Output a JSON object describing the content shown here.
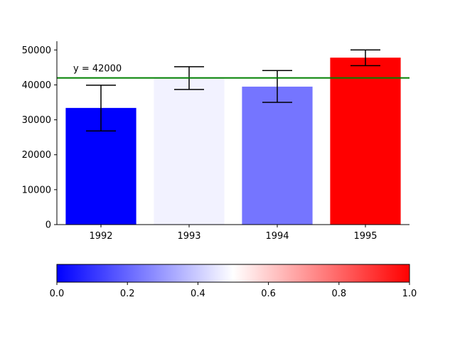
{
  "chart_data": {
    "type": "bar",
    "categories": [
      "1992",
      "1993",
      "1994",
      "1995"
    ],
    "values": [
      33400,
      42000,
      39500,
      47800
    ],
    "error_low": [
      26800,
      38700,
      35000,
      45500
    ],
    "error_high": [
      39900,
      45200,
      44100,
      50000
    ],
    "bar_colors": [
      "#0000ff",
      "#f2f2ff",
      "#7575ff",
      "#ff0000"
    ],
    "ylim": [
      0,
      52500
    ],
    "yticks": [
      "0",
      "10000",
      "20000",
      "30000",
      "40000",
      "50000"
    ],
    "ytick_values": [
      0,
      10000,
      20000,
      30000,
      40000,
      50000
    ],
    "reference_line": {
      "value": 42000,
      "label": "y = 42000",
      "color": "#008000"
    },
    "colorbar": {
      "ticks": [
        "0.0",
        "0.2",
        "0.4",
        "0.6",
        "0.8",
        "1.0"
      ],
      "tick_values": [
        0,
        0.2,
        0.4,
        0.6,
        0.8,
        1.0
      ],
      "colors": [
        "#0000ff",
        "#ffffff",
        "#ff0000"
      ]
    }
  }
}
